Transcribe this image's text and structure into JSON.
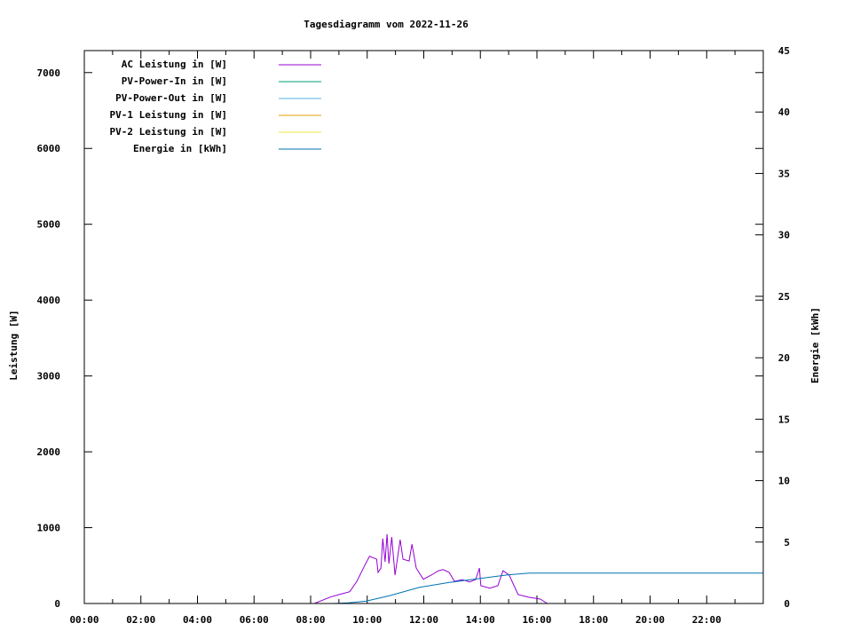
{
  "chart_data": {
    "type": "line",
    "title": "Tagesdiagramm vom 2022-11-26",
    "ylabel": "Leistung [W]",
    "y2label": "Energie [kWh]",
    "xlabel": "",
    "xlim_hours": [
      0,
      24
    ],
    "ylim": [
      0,
      7290
    ],
    "y2lim": [
      0,
      45
    ],
    "x_tick_labels": [
      "00:00",
      "02:00",
      "04:00",
      "06:00",
      "08:00",
      "10:00",
      "12:00",
      "14:00",
      "16:00",
      "18:00",
      "20:00",
      "22:00"
    ],
    "y_ticks": [
      0,
      1000,
      2000,
      3000,
      4000,
      5000,
      6000,
      7000
    ],
    "y2_ticks": [
      0,
      5,
      10,
      15,
      20,
      25,
      30,
      35,
      40,
      45
    ],
    "grid": false,
    "legend_placement": "top-left",
    "series": [
      {
        "name": "AC Leistung in [W]",
        "axis": "y",
        "color": "#9400d3",
        "x": [
          "08:08",
          "08:42",
          "09:00",
          "09:23",
          "09:38",
          "09:55",
          "10:05",
          "10:20",
          "10:23",
          "10:29",
          "10:33",
          "10:38",
          "10:42",
          "10:46",
          "10:52",
          "10:59",
          "11:10",
          "11:16",
          "11:29",
          "11:35",
          "11:44",
          "11:59",
          "12:16",
          "12:31",
          "12:41",
          "12:54",
          "13:05",
          "13:22",
          "13:37",
          "13:50",
          "13:58",
          "14:01",
          "14:20",
          "14:37",
          "14:48",
          "15:01",
          "15:20",
          "15:43",
          "16:07",
          "16:22"
        ],
        "y": [
          0,
          85,
          117,
          156,
          292,
          506,
          622,
          584,
          409,
          467,
          856,
          549,
          914,
          525,
          876,
          374,
          841,
          584,
          560,
          782,
          467,
          319,
          374,
          432,
          447,
          409,
          292,
          315,
          284,
          315,
          467,
          234,
          202,
          234,
          432,
          374,
          117,
          82,
          58,
          0
        ]
      },
      {
        "name": "PV-Power-In in [W]",
        "axis": "y",
        "color": "#009e73",
        "x": [],
        "y": []
      },
      {
        "name": "PV-Power-Out in [W]",
        "axis": "y",
        "color": "#56b4e9",
        "x": [],
        "y": []
      },
      {
        "name": "PV-1 Leistung in [W]",
        "axis": "y",
        "color": "#e69f00",
        "x": [],
        "y": []
      },
      {
        "name": "PV-2 Leistung in [W]",
        "axis": "y",
        "color": "#f0e442",
        "x": [],
        "y": []
      },
      {
        "name": "Energie in [kWh]",
        "axis": "y2",
        "color": "#0072b2",
        "x": [
          "08:45",
          "09:20",
          "09:57",
          "10:48",
          "11:50",
          "12:54",
          "13:56",
          "14:58",
          "15:44",
          "24:00"
        ],
        "y": [
          0,
          0.05,
          0.19,
          0.64,
          1.31,
          1.71,
          2.02,
          2.33,
          2.48,
          2.48
        ]
      }
    ]
  }
}
